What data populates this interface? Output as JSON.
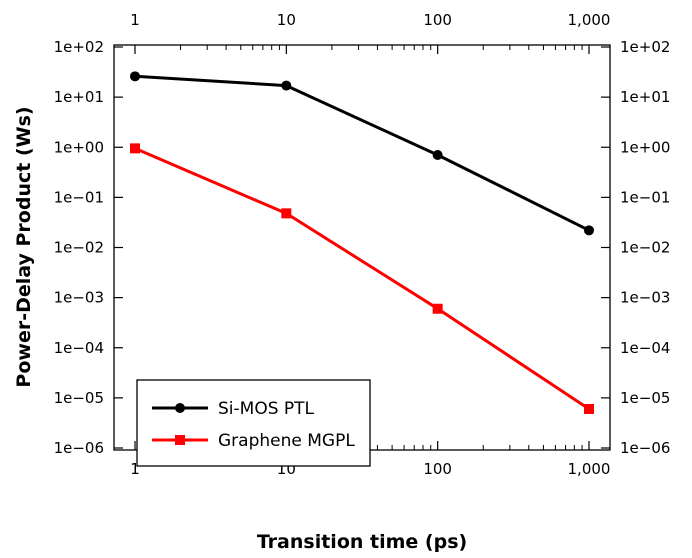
{
  "chart_data": {
    "type": "line",
    "xlabel": "Transition time (ps)",
    "ylabel": "Power-Delay Product (Ws)",
    "x_scale": "log",
    "y_scale": "log",
    "xlim": [
      1,
      1000
    ],
    "ylim": [
      1e-06,
      100
    ],
    "x_ticks": [
      1,
      10,
      100,
      1000
    ],
    "x_tick_labels": [
      "1",
      "10",
      "100",
      "1,000"
    ],
    "y_ticks": [
      1e-06,
      1e-05,
      0.0001,
      0.001,
      0.01,
      0.1,
      1,
      10,
      100
    ],
    "y_tick_labels": [
      "1e−06",
      "1e−05",
      "1e−04",
      "1e−03",
      "1e−02",
      "1e−01",
      "1e+00",
      "1e+01",
      "1e+02"
    ],
    "grid": false,
    "legend_position": "bottom-left",
    "series": [
      {
        "name": "Si-MOS PTL",
        "color": "#000000",
        "marker": "circle",
        "x": [
          1,
          10,
          100,
          1000
        ],
        "y": [
          26,
          17,
          0.7,
          0.022
        ]
      },
      {
        "name": "Graphene MGPL",
        "color": "#ff0000",
        "marker": "square",
        "x": [
          1,
          10,
          100,
          1000
        ],
        "y": [
          0.95,
          0.048,
          0.0006,
          6e-06
        ]
      }
    ]
  }
}
